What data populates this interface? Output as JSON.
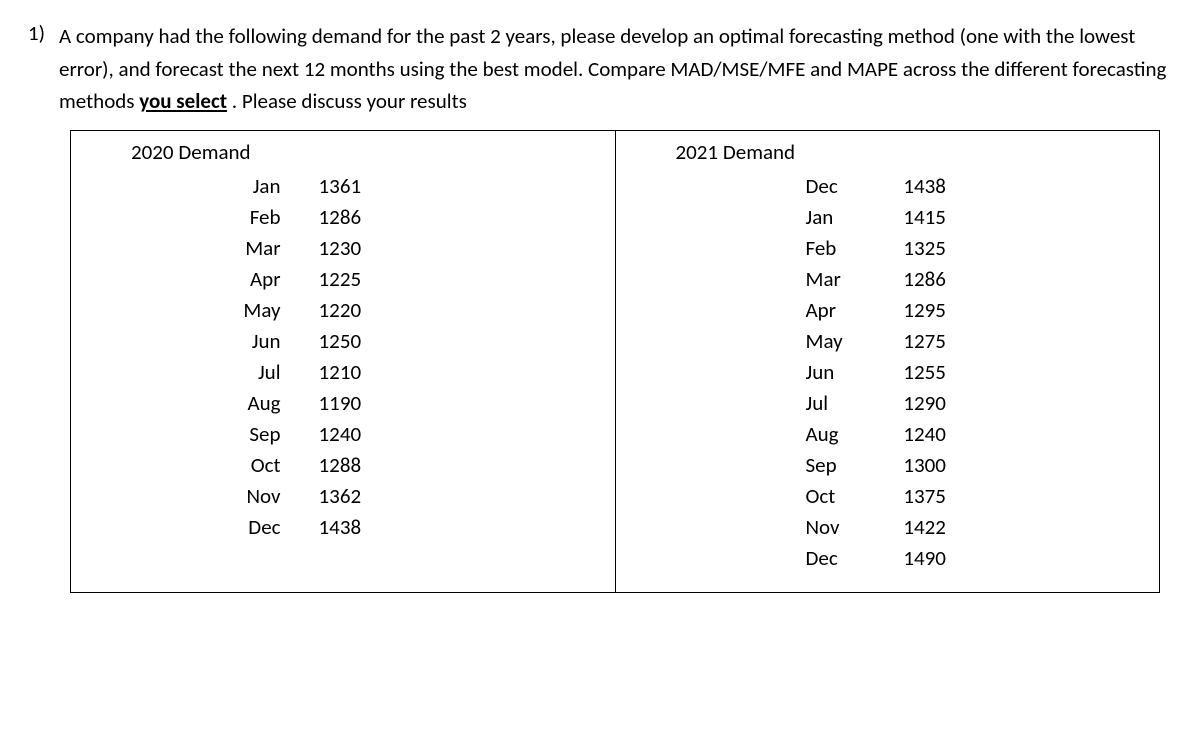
{
  "question": {
    "number": "1)",
    "text_part1": "A company had the following demand for the past 2 years, please develop an optimal forecasting method (one with the lowest error), and forecast the next 12 months using the best model. Compare  MAD/MSE/MFE and MAPE across the different forecasting methods ",
    "text_underlined": "you select",
    "text_part2": " . Please discuss your results"
  },
  "tables": {
    "left": {
      "heading": "2020 Demand",
      "rows": [
        {
          "month": "Jan",
          "value": "1361"
        },
        {
          "month": "Feb",
          "value": "1286"
        },
        {
          "month": "Mar",
          "value": "1230"
        },
        {
          "month": "Apr",
          "value": "1225"
        },
        {
          "month": "May",
          "value": "1220"
        },
        {
          "month": "Jun",
          "value": "1250"
        },
        {
          "month": "Jul",
          "value": "1210"
        },
        {
          "month": "Aug",
          "value": "1190"
        },
        {
          "month": "Sep",
          "value": "1240"
        },
        {
          "month": "Oct",
          "value": "1288"
        },
        {
          "month": "Nov",
          "value": "1362"
        },
        {
          "month": "Dec",
          "value": "1438"
        }
      ]
    },
    "right": {
      "heading": "2021 Demand",
      "rows": [
        {
          "month": "Dec",
          "value": "1438"
        },
        {
          "month": "Jan",
          "value": "1415"
        },
        {
          "month": "Feb",
          "value": "1325"
        },
        {
          "month": "Mar",
          "value": "1286"
        },
        {
          "month": "Apr",
          "value": "1295"
        },
        {
          "month": "May",
          "value": "1275"
        },
        {
          "month": "Jun",
          "value": "1255"
        },
        {
          "month": "Jul",
          "value": "1290"
        },
        {
          "month": "Aug",
          "value": "1240"
        },
        {
          "month": "Sep",
          "value": "1300"
        },
        {
          "month": "Oct",
          "value": "1375"
        },
        {
          "month": "Nov",
          "value": "1422"
        },
        {
          "month": "Dec",
          "value": "1490"
        }
      ]
    }
  },
  "styles": {
    "font_family": "Calibri",
    "body_fontsize": 21,
    "text_color": "#000000",
    "background_color": "#ffffff",
    "border_color": "#000000"
  }
}
